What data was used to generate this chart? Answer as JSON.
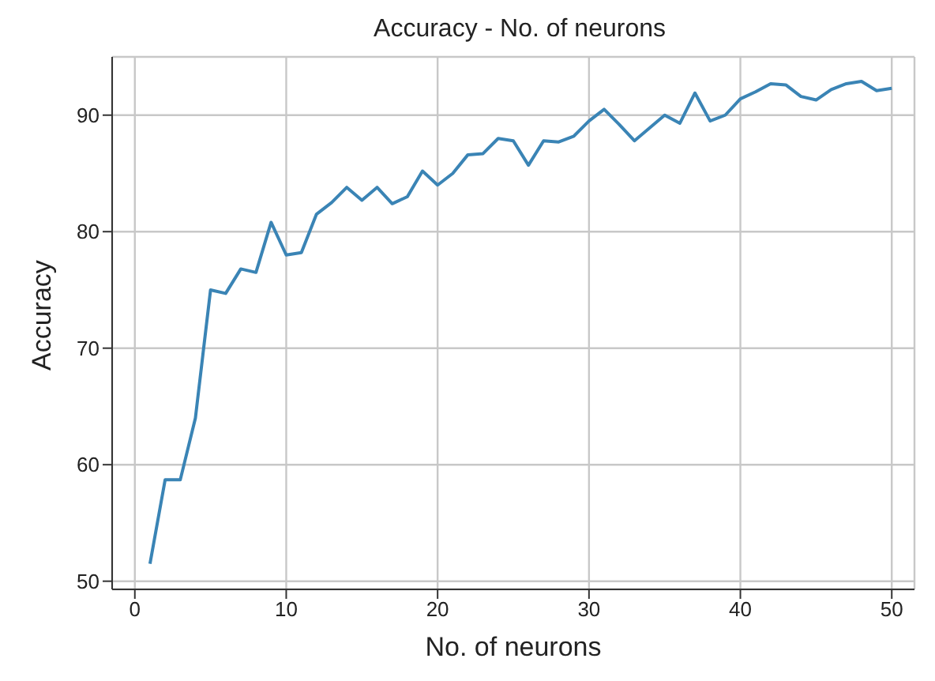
{
  "chart_data": {
    "type": "line",
    "title": "Accuracy - No. of neurons",
    "xlabel": "No. of neurons",
    "ylabel": "Accuracy",
    "x": [
      1,
      2,
      3,
      4,
      5,
      6,
      7,
      8,
      9,
      10,
      11,
      12,
      13,
      14,
      15,
      16,
      17,
      18,
      19,
      20,
      21,
      22,
      23,
      24,
      25,
      26,
      27,
      28,
      29,
      30,
      31,
      32,
      33,
      34,
      35,
      36,
      37,
      38,
      39,
      40,
      41,
      42,
      43,
      44,
      45,
      46,
      47,
      48,
      49,
      50
    ],
    "series": [
      {
        "color": "#3a84b5",
        "values": [
          51.5,
          58.7,
          58.7,
          64,
          75,
          74.7,
          76.8,
          76.5,
          80.8,
          78,
          78.2,
          81.5,
          82.5,
          83.8,
          82.7,
          83.8,
          82.4,
          83,
          85.2,
          84,
          85,
          86.6,
          86.7,
          88,
          87.8,
          85.7,
          87.8,
          87.7,
          88.2,
          89.5,
          90.5,
          89.2,
          87.8,
          88.9,
          90,
          89.3,
          91.9,
          89.5,
          90,
          91.4,
          92,
          92.7,
          92.6,
          91.6,
          91.3,
          92.2,
          92.7,
          92.9,
          92.1,
          92.3
        ]
      }
    ],
    "xlim": [
      -1.5,
      51.5
    ],
    "ylim": [
      49.3,
      95
    ],
    "xticks": [
      0,
      10,
      20,
      30,
      40,
      50
    ],
    "yticks": [
      50,
      60,
      70,
      80,
      90
    ],
    "grid": true,
    "marker": "none",
    "line_style": "solid"
  }
}
